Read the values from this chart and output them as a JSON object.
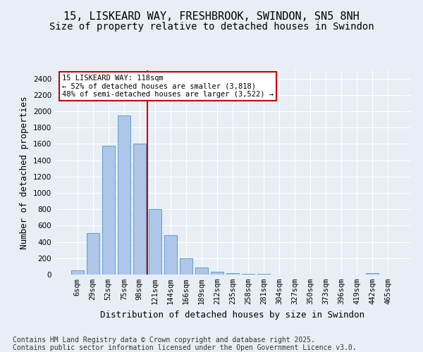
{
  "title1": "15, LISKEARD WAY, FRESHBROOK, SWINDON, SN5 8NH",
  "title2": "Size of property relative to detached houses in Swindon",
  "xlabel": "Distribution of detached houses by size in Swindon",
  "ylabel": "Number of detached properties",
  "categories": [
    "6sqm",
    "29sqm",
    "52sqm",
    "75sqm",
    "98sqm",
    "121sqm",
    "144sqm",
    "166sqm",
    "189sqm",
    "212sqm",
    "235sqm",
    "258sqm",
    "281sqm",
    "304sqm",
    "327sqm",
    "350sqm",
    "373sqm",
    "396sqm",
    "419sqm",
    "442sqm",
    "465sqm"
  ],
  "values": [
    50,
    510,
    1580,
    1950,
    1600,
    800,
    480,
    195,
    85,
    35,
    20,
    10,
    5,
    3,
    2,
    1,
    0,
    0,
    0,
    20,
    0
  ],
  "bar_color": "#aec6e8",
  "bar_edge_color": "#5a9fd4",
  "vline_color": "#cc0000",
  "vline_pos": 4.5,
  "annotation_text": "15 LISKEARD WAY: 118sqm\n← 52% of detached houses are smaller (3,818)\n48% of semi-detached houses are larger (3,522) →",
  "annotation_box_color": "#ffffff",
  "annotation_box_edge": "#cc0000",
  "ylim": [
    0,
    2500
  ],
  "yticks": [
    0,
    200,
    400,
    600,
    800,
    1000,
    1200,
    1400,
    1600,
    1800,
    2000,
    2200,
    2400
  ],
  "background_color": "#e8eef5",
  "grid_color": "#ffffff",
  "footer": "Contains HM Land Registry data © Crown copyright and database right 2025.\nContains public sector information licensed under the Open Government Licence v3.0.",
  "title1_fontsize": 11,
  "title2_fontsize": 10,
  "xlabel_fontsize": 9,
  "ylabel_fontsize": 9,
  "tick_fontsize": 7.5,
  "footer_fontsize": 7
}
